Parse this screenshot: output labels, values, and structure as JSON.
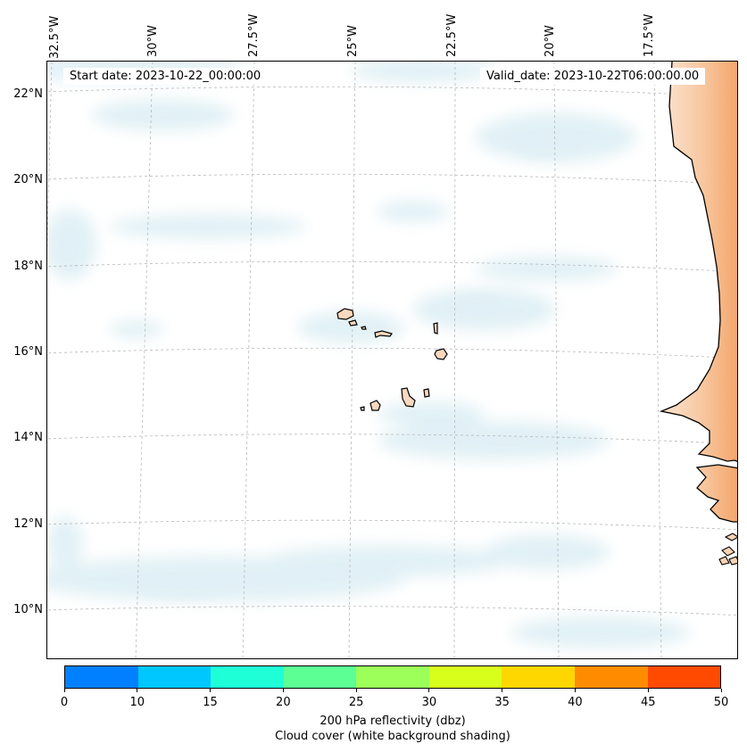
{
  "map": {
    "projection": "Lambert conformal",
    "region": "Eastern tropical Atlantic / Cape Verde",
    "extent": {
      "lon_min": -32.6,
      "lon_max": -16.2,
      "lat_min": 8.8,
      "lat_max": 22.8
    },
    "lat_labels": [
      "22°N",
      "20°N",
      "18°N",
      "16°N",
      "14°N",
      "12°N",
      "10°N"
    ],
    "lon_labels": [
      "32.5°W",
      "30°W",
      "27.5°W",
      "25°W",
      "22.5°W",
      "20°W",
      "17.5°W"
    ],
    "start_date": "Start date: 2023-10-22_00:00:00",
    "valid_date": "Valid_date: 2023-10-22T06:00:00.00",
    "cloud_color": "#d8ecf3",
    "coastline_color": "#000000",
    "high_reflectivity_color": "#f3a468"
  },
  "colorbar": {
    "colors": [
      "#0080ff",
      "#00c8ff",
      "#1effd8",
      "#5cff94",
      "#9cff5a",
      "#d8ff1c",
      "#ffd700",
      "#ff8c00",
      "#ff4a00"
    ],
    "ticks": [
      "0",
      "10",
      "15",
      "20",
      "25",
      "30",
      "35",
      "40",
      "45",
      "50"
    ],
    "label": "200 hPa reflectivity (dbz)",
    "sublabel": "Cloud cover (white background shading)"
  }
}
